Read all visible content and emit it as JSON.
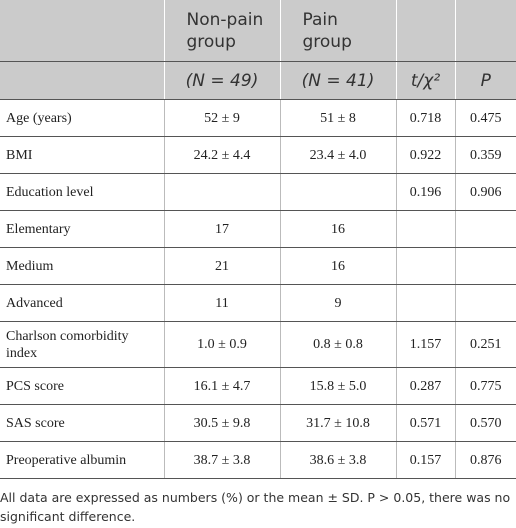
{
  "table": {
    "header": [
      [
        "Non-pain group",
        "Pain group"
      ],
      [
        "(N = 49)",
        "(N = 41)",
        "t/χ²",
        "P"
      ]
    ],
    "rows": [
      [
        "Age (years)",
        "52 ± 9",
        "51 ± 8",
        "0.718",
        "0.475"
      ],
      [
        "BMI",
        "24.2 ± 4.4",
        "23.4 ± 4.0",
        "0.922",
        "0.359"
      ],
      [
        "Education level",
        null,
        null,
        "0.196",
        "0.906"
      ],
      [
        "Elementary",
        "17",
        "16",
        null,
        null
      ],
      [
        "Medium",
        "21",
        "16",
        null,
        null
      ],
      [
        "Advanced",
        "11",
        "9",
        null,
        null
      ],
      [
        "Charlson comorbidity index",
        "1.0 ± 0.9",
        "0.8 ± 0.8",
        "1.157",
        "0.251"
      ],
      [
        "PCS score",
        "16.1 ± 4.7",
        "15.8 ± 5.0",
        "0.287",
        "0.775"
      ],
      [
        "SAS score",
        "30.5 ± 9.8",
        "31.7 ± 10.8",
        "0.571",
        "0.570"
      ],
      [
        "Preoperative albumin",
        "38.7 ± 3.8",
        "38.6 ± 3.8",
        "0.157",
        "0.876"
      ]
    ]
  },
  "note": "All data are expressed as numbers (%) or the mean ± SD. P > 0.05, there was no significant difference."
}
